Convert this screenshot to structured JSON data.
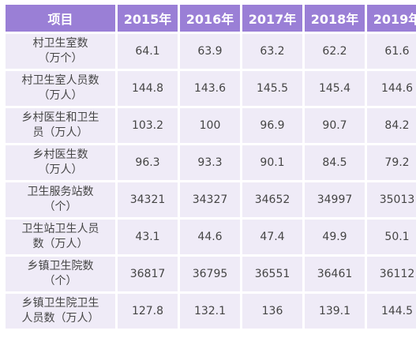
{
  "table": {
    "headers": [
      "项目",
      "2015年",
      "2016年",
      "2017年",
      "2018年",
      "2019年"
    ],
    "rows": [
      {
        "item_lines": [
          "村卫生室数",
          "（万个）"
        ],
        "values": [
          "64.1",
          "63.9",
          "63.2",
          "62.2",
          "61.6"
        ]
      },
      {
        "item_lines": [
          "村卫生室人员数",
          "（万人）"
        ],
        "values": [
          "144.8",
          "143.6",
          "145.5",
          "145.4",
          "144.6"
        ]
      },
      {
        "item_lines": [
          "乡村医生和卫生",
          "员（万人）"
        ],
        "values": [
          "103.2",
          "100",
          "96.9",
          "90.7",
          "84.2"
        ]
      },
      {
        "item_lines": [
          "乡村医生数",
          "（万人）"
        ],
        "values": [
          "96.3",
          "93.3",
          "90.1",
          "84.5",
          "79.2"
        ]
      },
      {
        "item_lines": [
          "卫生服务站数",
          "（个）"
        ],
        "values": [
          "34321",
          "34327",
          "34652",
          "34997",
          "35013"
        ]
      },
      {
        "item_lines": [
          "卫生站卫生人员",
          "数（万人）"
        ],
        "values": [
          "43.1",
          "44.6",
          "47.4",
          "49.9",
          "50.1"
        ]
      },
      {
        "item_lines": [
          "乡镇卫生院数",
          "（个）"
        ],
        "values": [
          "36817",
          "36795",
          "36551",
          "36461",
          "36112"
        ]
      },
      {
        "item_lines": [
          "乡镇卫生院卫生",
          "人员数（万人）"
        ],
        "values": [
          "127.8",
          "132.1",
          "136",
          "139.1",
          "144.5"
        ]
      }
    ]
  }
}
